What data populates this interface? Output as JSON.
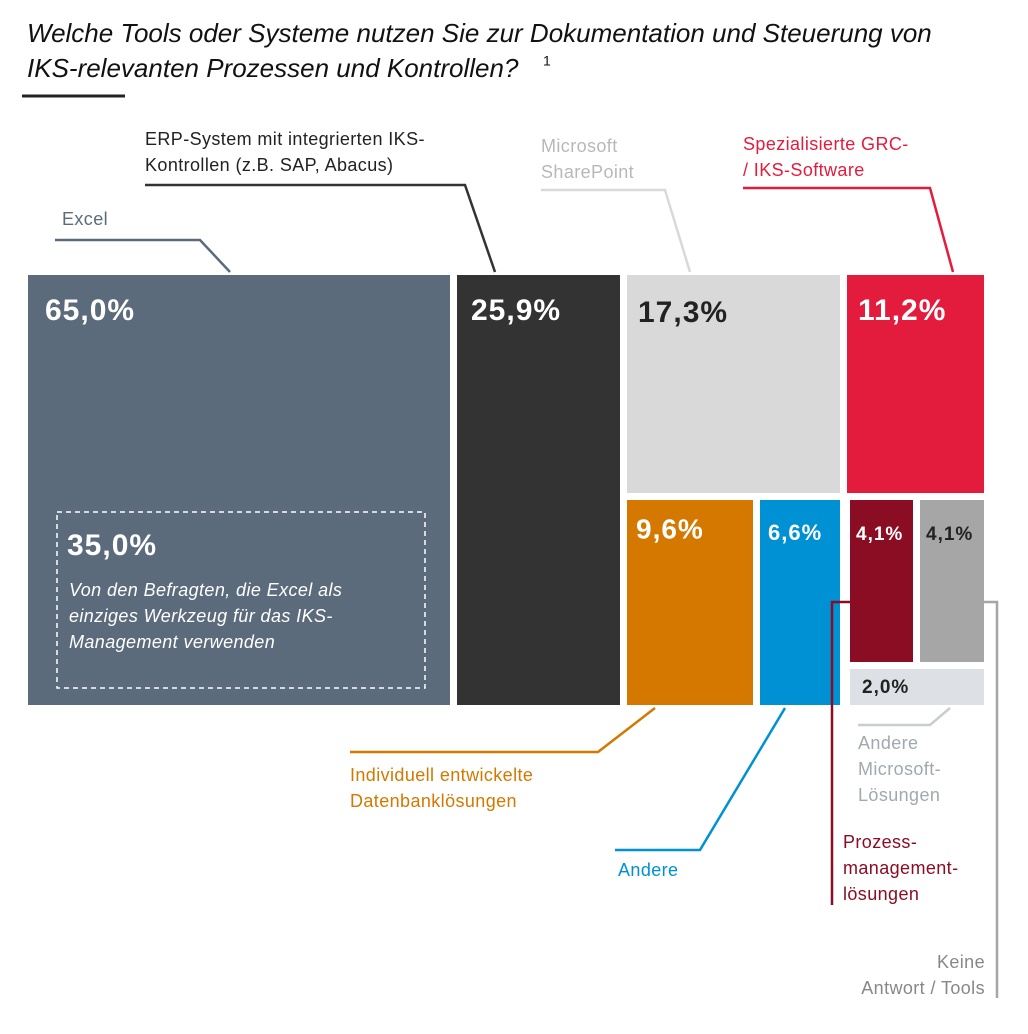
{
  "chart_data": {
    "type": "treemap",
    "title": [
      "Welche Tools oder Systeme nutzen Sie zur Dokumentation und Steuerung von",
      "IKS-relevanten Prozessen und Kontrollen?"
    ],
    "footnote_mark": "1",
    "series": [
      {
        "name": [
          "Excel"
        ],
        "color": "#5b6b7c",
        "values": [
          65.0
        ],
        "value_labels": [
          "65,0%"
        ]
      },
      {
        "name": [
          "ERP-System mit integrierten IKS-",
          "Kontrollen (z.B. SAP, Abacus)"
        ],
        "color": "#333333",
        "values": [
          25.9
        ],
        "value_labels": [
          "25,9%"
        ]
      },
      {
        "name": [
          "Microsoft",
          "SharePoint"
        ],
        "color": "#d9d9d9",
        "values": [
          17.3
        ],
        "value_labels": [
          "17,3%"
        ]
      },
      {
        "name": [
          "Spezialisierte GRC-",
          "/ IKS-Software"
        ],
        "color": "#e31b3c",
        "values": [
          11.2
        ],
        "value_labels": [
          "11,2%"
        ]
      },
      {
        "name": [
          "Individuell entwickelte",
          "Datenbanklösungen"
        ],
        "color": "#d47800",
        "values": [
          9.6
        ],
        "value_labels": [
          "9,6%"
        ]
      },
      {
        "name": [
          "Andere"
        ],
        "color": "#0090d4",
        "values": [
          6.6
        ],
        "value_labels": [
          "6,6%"
        ]
      },
      {
        "name": [
          "Prozess-",
          "management-",
          "lösungen"
        ],
        "color": "#8b0d24",
        "values": [
          4.1
        ],
        "value_labels": [
          "4,1%"
        ]
      },
      {
        "name": [
          "Keine",
          "Antwort / Tools"
        ],
        "color": "#a6a6a6",
        "values": [
          4.1
        ],
        "value_labels": [
          "4,1%"
        ]
      },
      {
        "name": [
          "Andere",
          "Microsoft-",
          "Lösungen"
        ],
        "color": "#dde1e5",
        "values": [
          2.0
        ],
        "value_labels": [
          "2,0%"
        ]
      }
    ],
    "annotation": {
      "value": 35.0,
      "value_label": "35,0%",
      "text": [
        "Von den Befragten, die Excel als",
        "einziges Werkzeug für das IKS-",
        "Management verwenden"
      ]
    }
  }
}
